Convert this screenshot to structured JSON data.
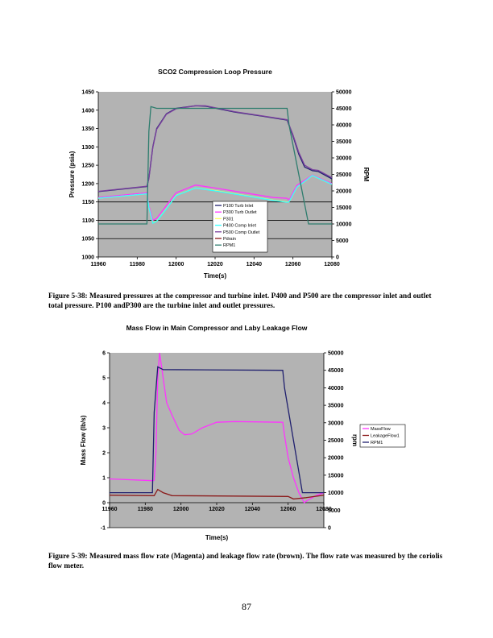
{
  "page_number": "87",
  "captions": [
    "Figure 5-38:  Measured pressures at the compressor and turbine inlet.  P400 and P500 are the compressor inlet and outlet total pressure.  P100 andP300 are the turbine inlet and outlet pressures.",
    "Figure 5-39:  Measured mass flow rate (Magenta) and leakage flow rate (brown).  The flow rate was measured by the coriolis flow meter."
  ],
  "chart_data": [
    {
      "type": "line",
      "title": "SCO2 Compression Loop Pressure",
      "xlabel": "Time(s)",
      "ylabel": "Pressure (psia)",
      "y2label": "RPM",
      "xlim": [
        11960,
        12080
      ],
      "ylim": [
        1000,
        1450
      ],
      "y2lim": [
        0,
        50000
      ],
      "xticks": [
        "11960",
        "11980",
        "12000",
        "12020",
        "12040",
        "12060",
        "12080"
      ],
      "yticks": [
        "1000",
        "1050",
        "1100",
        "1150",
        "1200",
        "1250",
        "1300",
        "1350",
        "1400",
        "1450"
      ],
      "y2ticks": [
        "0",
        "5000",
        "10000",
        "15000",
        "20000",
        "25000",
        "30000",
        "35000",
        "40000",
        "45000",
        "50000"
      ],
      "gridlines": [
        1050,
        1100,
        1150
      ],
      "plot_background": "#b3b3b3",
      "legend_position": "center-bottom",
      "series": [
        {
          "name": "P100 Turb Inlet",
          "color": "#1f1f6e",
          "axis": "left",
          "x": [
            11960,
            11985,
            11986,
            11988,
            11990,
            11995,
            12000,
            12010,
            12015,
            12030,
            12045,
            12057,
            12060,
            12063,
            12066,
            12070,
            12073,
            12080
          ],
          "y": [
            1178,
            1192,
            1215,
            1300,
            1350,
            1390,
            1405,
            1412,
            1411,
            1395,
            1383,
            1373,
            1330,
            1280,
            1245,
            1235,
            1233,
            1213
          ]
        },
        {
          "name": "P300 Turb Outlet",
          "color": "#ff33ff",
          "axis": "left",
          "x": [
            11960,
            11985,
            11986,
            11988,
            11990,
            11995,
            12000,
            12010,
            12020,
            12035,
            12050,
            12057,
            12058,
            12062,
            12070,
            12080
          ],
          "y": [
            1162,
            1175,
            1140,
            1100,
            1105,
            1140,
            1175,
            1196,
            1188,
            1175,
            1162,
            1160,
            1155,
            1195,
            1223,
            1200
          ]
        },
        {
          "name": "P301",
          "color": "#ffff66",
          "axis": "left",
          "x": [
            11960,
            11985,
            11986,
            11988,
            11990,
            11995,
            12000,
            12010,
            12020,
            12035,
            12050,
            12057,
            12058,
            12062,
            12070,
            12080
          ],
          "y": [
            1160,
            1172,
            1135,
            1093,
            1098,
            1132,
            1168,
            1188,
            1181,
            1168,
            1155,
            1150,
            1150,
            1190,
            1222,
            1198
          ]
        },
        {
          "name": "P400 Comp Inlet",
          "color": "#33ffff",
          "axis": "left",
          "x": [
            11960,
            11985,
            11986,
            11988,
            11990,
            11995,
            12000,
            12010,
            12020,
            12035,
            12050,
            12057,
            12058,
            12062,
            12070,
            12080
          ],
          "y": [
            1160,
            1172,
            1135,
            1092,
            1097,
            1131,
            1167,
            1188,
            1180,
            1167,
            1154,
            1149,
            1150,
            1190,
            1222,
            1198
          ]
        },
        {
          "name": "P500 Comp Outlet",
          "color": "#7a3f9e",
          "axis": "left",
          "x": [
            11960,
            11985,
            11986,
            11988,
            11990,
            11995,
            12000,
            12010,
            12015,
            12030,
            12045,
            12057,
            12060,
            12063,
            12066,
            12070,
            12073,
            12080
          ],
          "y": [
            1179,
            1193,
            1213,
            1298,
            1348,
            1389,
            1404,
            1412,
            1412,
            1396,
            1384,
            1374,
            1333,
            1285,
            1250,
            1238,
            1236,
            1216
          ]
        },
        {
          "name": "Pdrain",
          "color": "#8b1a1a",
          "axis": "left",
          "x": [],
          "y": []
        },
        {
          "name": "RPM1",
          "color": "#2e7d6e",
          "axis": "right",
          "x": [
            11960,
            11985,
            11986,
            11987,
            11990,
            12057,
            12058,
            12068,
            12080
          ],
          "y": [
            10000,
            10000,
            38000,
            45500,
            45000,
            45000,
            40000,
            10000,
            10000
          ]
        }
      ]
    },
    {
      "type": "line",
      "title": "Mass Flow in Main Compressor and Laby Leakage Flow",
      "xlabel": "Time(s)",
      "ylabel": "Mass Flow (lb/s)",
      "y2label": "rpm",
      "xlim": [
        11960,
        12080
      ],
      "ylim": [
        -1,
        6
      ],
      "y2lim": [
        0,
        50000
      ],
      "xticks": [
        "11960",
        "11980",
        "12000",
        "12020",
        "12040",
        "12060",
        "12080"
      ],
      "yticks": [
        "-1",
        "0",
        "1",
        "2",
        "3",
        "4",
        "5",
        "6"
      ],
      "y2ticks": [
        "0",
        "5000",
        "10000",
        "15000",
        "20000",
        "25000",
        "30000",
        "35000",
        "40000",
        "45000",
        "50000"
      ],
      "plot_background": "#b3b3b3",
      "legend_position": "right",
      "series": [
        {
          "name": "MassFlow",
          "color": "#ff33ff",
          "axis": "left",
          "x": [
            11960,
            11984,
            11985,
            11986,
            11987,
            11988,
            11990,
            11992,
            11995,
            11999,
            12002,
            12006,
            12012,
            12020,
            12030,
            12057,
            12058,
            12060,
            12063,
            12066,
            12069,
            12071,
            12076,
            12080
          ],
          "y": [
            0.95,
            0.88,
            0.9,
            2,
            5,
            6,
            5,
            4,
            3.5,
            2.9,
            2.72,
            2.75,
            3.0,
            3.22,
            3.25,
            3.22,
            2.7,
            1.8,
            1.0,
            0.4,
            0.0,
            0.1,
            0.3,
            0.4
          ]
        },
        {
          "name": "LeakageFlow1",
          "color": "#8b1a1a",
          "axis": "left",
          "x": [
            11960,
            11985,
            11987,
            11990,
            11995,
            12060,
            12063,
            12070,
            12080
          ],
          "y": [
            0.3,
            0.28,
            0.53,
            0.4,
            0.28,
            0.25,
            0.15,
            0.2,
            0.3
          ]
        },
        {
          "name": "RPM1",
          "color": "#1f1f6e",
          "axis": "right",
          "x": [
            11960,
            11984,
            11985,
            11987,
            11990,
            12057,
            12058,
            12068,
            12080
          ],
          "y": [
            10000,
            10000,
            33000,
            46000,
            45200,
            45000,
            40000,
            10000,
            10000
          ]
        }
      ]
    }
  ]
}
